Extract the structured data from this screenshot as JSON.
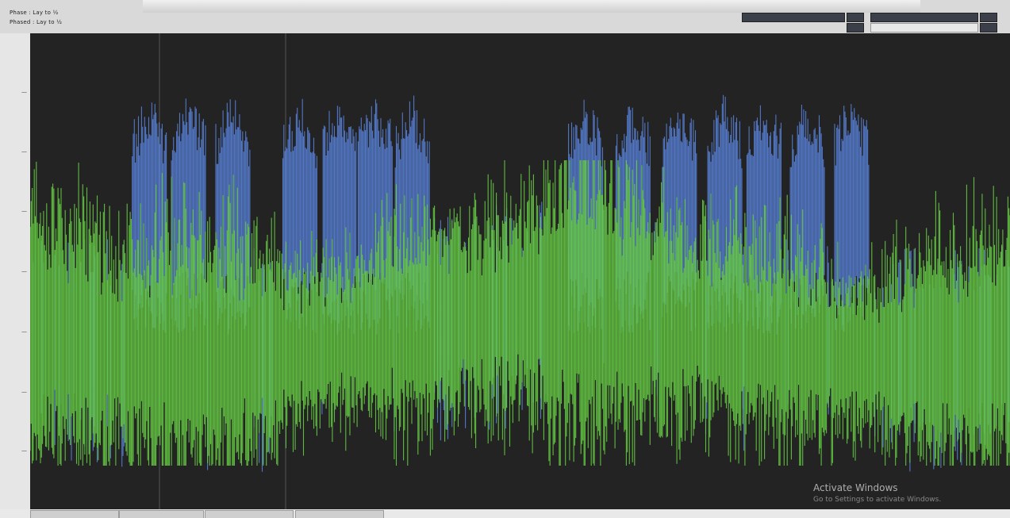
{
  "header": {
    "line1": "Phase : Lay to ½",
    "line2": "Phased : Lay to ½"
  },
  "controls": {
    "ch_a_label": "",
    "ch_b_label": ""
  },
  "watermark": {
    "title": "Activate Windows",
    "subtitle": "Go to Settings to activate Windows."
  },
  "colors": {
    "plot_bg": "#232323",
    "blue_series": "#5b86e0",
    "green_series": "#66cc44"
  }
}
